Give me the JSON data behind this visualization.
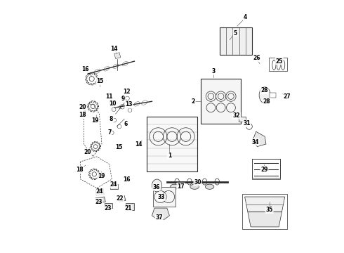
{
  "title": "",
  "background_color": "#ffffff",
  "line_color": "#2a2a2a",
  "label_color": "#000000",
  "fig_width": 4.9,
  "fig_height": 3.6,
  "dpi": 100
}
